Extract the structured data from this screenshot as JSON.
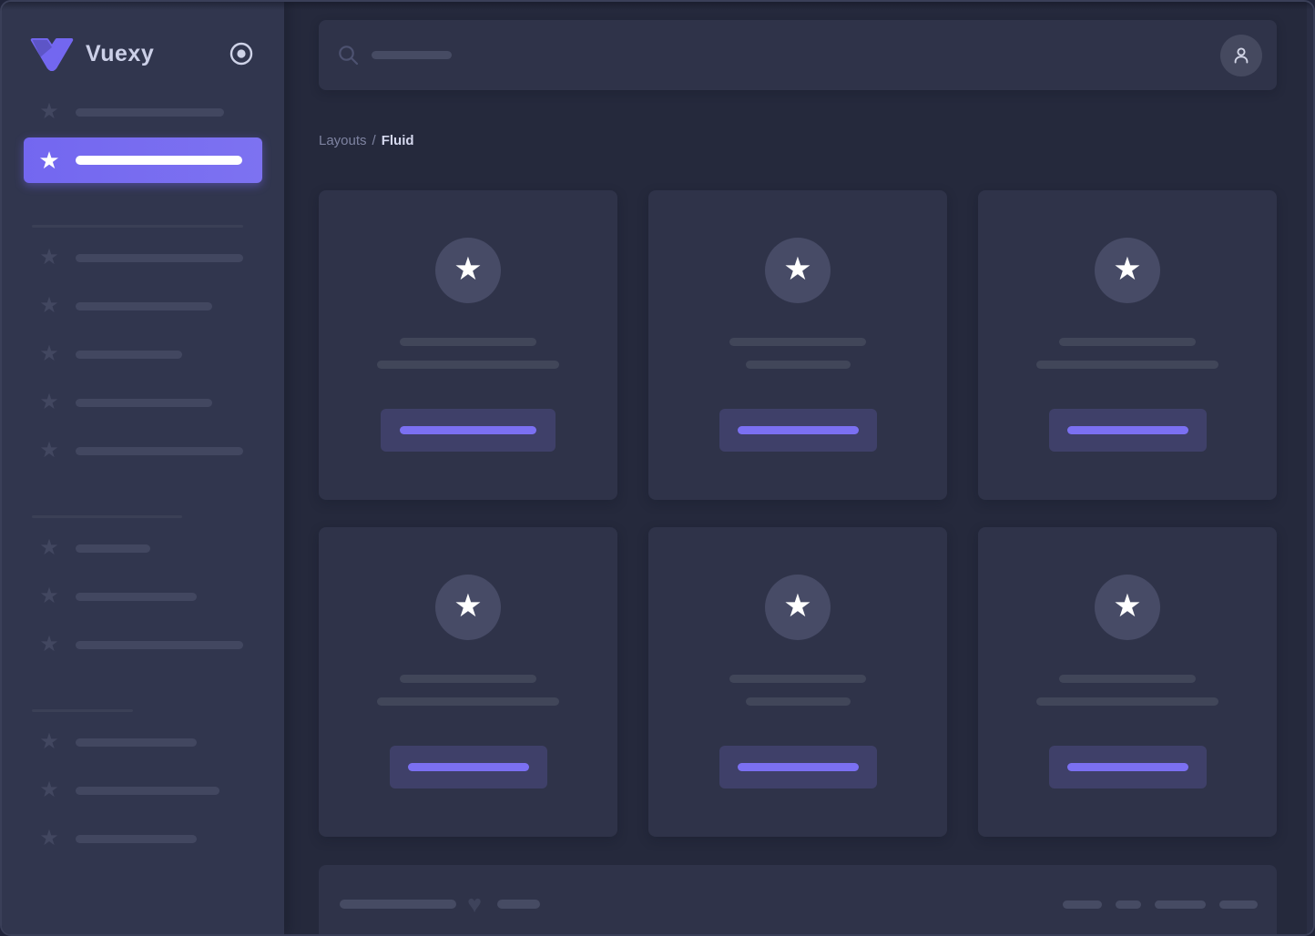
{
  "app": {
    "title": "Vuexy — Layouts / Fluid"
  },
  "colors": {
    "accent": "#7367f0",
    "body_bg": "#25293c",
    "panel_bg": "#2f3349",
    "sidebar_bg": "#31364e",
    "skeleton": "#424760",
    "button_bg": "#3f4069",
    "button_line": "#7b70f2"
  },
  "icons": {
    "star": "★",
    "heart": "♥",
    "logo": "vuexy-chevron-icon",
    "pin": "radio-dot-icon",
    "search": "magnifier-icon",
    "user": "person-icon"
  },
  "sidebar": {
    "brand": "Vuexy",
    "sections": [
      {
        "divider_w": 0,
        "items": [
          {
            "line_w": 163,
            "active": false
          },
          {
            "line_w": 183,
            "active": true
          }
        ]
      },
      {
        "divider_w": 232,
        "items": [
          {
            "line_w": 184,
            "active": false
          },
          {
            "line_w": 150,
            "active": false
          },
          {
            "line_w": 117,
            "active": false
          },
          {
            "line_w": 150,
            "active": false
          },
          {
            "line_w": 184,
            "active": false
          }
        ]
      },
      {
        "divider_w": 165,
        "items": [
          {
            "line_w": 82,
            "active": false
          },
          {
            "line_w": 133,
            "active": false
          },
          {
            "line_w": 184,
            "active": false
          }
        ]
      },
      {
        "divider_w": 111,
        "items": [
          {
            "line_w": 133,
            "active": false
          },
          {
            "line_w": 158,
            "active": false
          },
          {
            "line_w": 133,
            "active": false
          }
        ]
      }
    ]
  },
  "topbar": {
    "search_line_w": 88
  },
  "breadcrumb": {
    "parent": "Layouts",
    "separator": "/",
    "current": "Fluid"
  },
  "cards": [
    {
      "title_w": 150,
      "subtitle_w": 200,
      "button_w": 192,
      "button_line_w": 150
    },
    {
      "title_w": 150,
      "subtitle_w": 115,
      "button_w": 173,
      "button_line_w": 133
    },
    {
      "title_w": 150,
      "subtitle_w": 200,
      "button_w": 173,
      "button_line_w": 133
    },
    {
      "title_w": 150,
      "subtitle_w": 200,
      "button_w": 173,
      "button_line_w": 133
    },
    {
      "title_w": 150,
      "subtitle_w": 115,
      "button_w": 173,
      "button_line_w": 133
    },
    {
      "title_w": 150,
      "subtitle_w": 200,
      "button_w": 173,
      "button_line_w": 133
    }
  ],
  "footer": {
    "left_line_ws": [
      128,
      47
    ],
    "right_line_ws": [
      43,
      28,
      56,
      42
    ]
  }
}
